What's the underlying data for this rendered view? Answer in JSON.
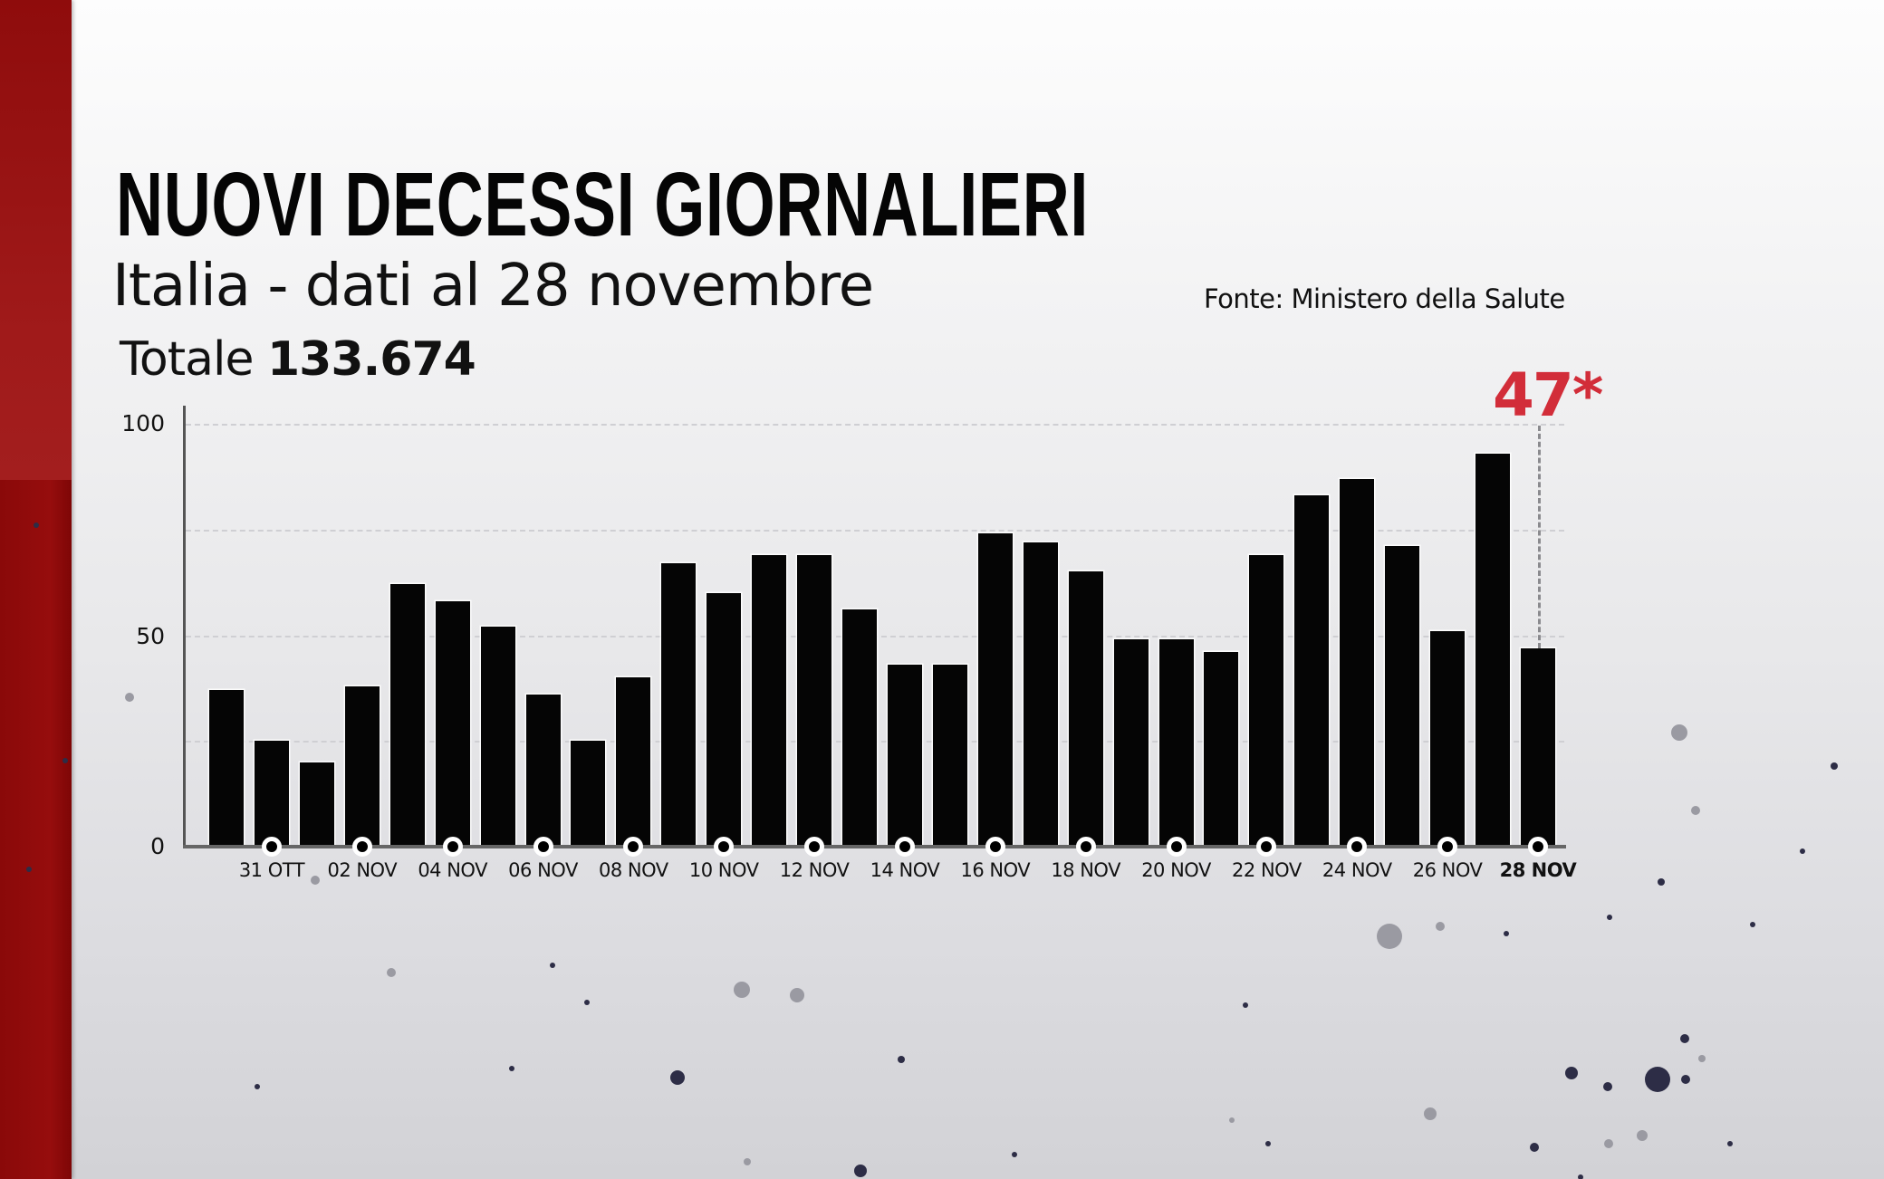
{
  "header": {
    "title": "NUOVI DECESSI GIORNALIERI",
    "subtitle": "Italia - dati al 28 novembre",
    "total_label": "Totale",
    "total_value": "133.674",
    "source": "Fonte: Ministero della Salute"
  },
  "colors": {
    "brand_red": "#8e0b0b",
    "highlight": "#d22d39",
    "bar": "#050505"
  },
  "highlight": {
    "label": "47*",
    "date": "28 NOV",
    "value": 47
  },
  "axis": {
    "y_ticks": [
      "100",
      "50",
      "0"
    ],
    "x_labels": [
      "31 OTT",
      "02 NOV",
      "04 NOV",
      "06 NOV",
      "08 NOV",
      "10 NOV",
      "12 NOV",
      "14 NOV",
      "16 NOV",
      "18 NOV",
      "20 NOV",
      "22 NOV",
      "24 NOV",
      "26 NOV",
      "28 NOV"
    ]
  },
  "chart_data": {
    "type": "bar",
    "title": "NUOVI DECESSI GIORNALIERI",
    "subtitle": "Italia - dati al 28 novembre",
    "annotation": "Totale 133.674; ultimo valore 47* (28 NOV)",
    "source": "Fonte: Ministero della Salute",
    "xlabel": "",
    "ylabel": "",
    "ylim": [
      0,
      100
    ],
    "yticks": [
      0,
      50,
      100
    ],
    "grid": true,
    "legend": null,
    "categories": [
      "30 OTT",
      "31 OTT",
      "01 NOV",
      "02 NOV",
      "03 NOV",
      "04 NOV",
      "05 NOV",
      "06 NOV",
      "07 NOV",
      "08 NOV",
      "09 NOV",
      "10 NOV",
      "11 NOV",
      "12 NOV",
      "13 NOV",
      "14 NOV",
      "15 NOV",
      "16 NOV",
      "17 NOV",
      "18 NOV",
      "19 NOV",
      "20 NOV",
      "21 NOV",
      "22 NOV",
      "23 NOV",
      "24 NOV",
      "25 NOV",
      "26 NOV",
      "27 NOV",
      "28 NOV"
    ],
    "values": [
      37,
      25,
      20,
      38,
      62,
      58,
      52,
      36,
      25,
      40,
      67,
      60,
      69,
      69,
      56,
      43,
      43,
      74,
      72,
      65,
      49,
      49,
      46,
      69,
      83,
      87,
      71,
      51,
      93,
      47
    ]
  }
}
